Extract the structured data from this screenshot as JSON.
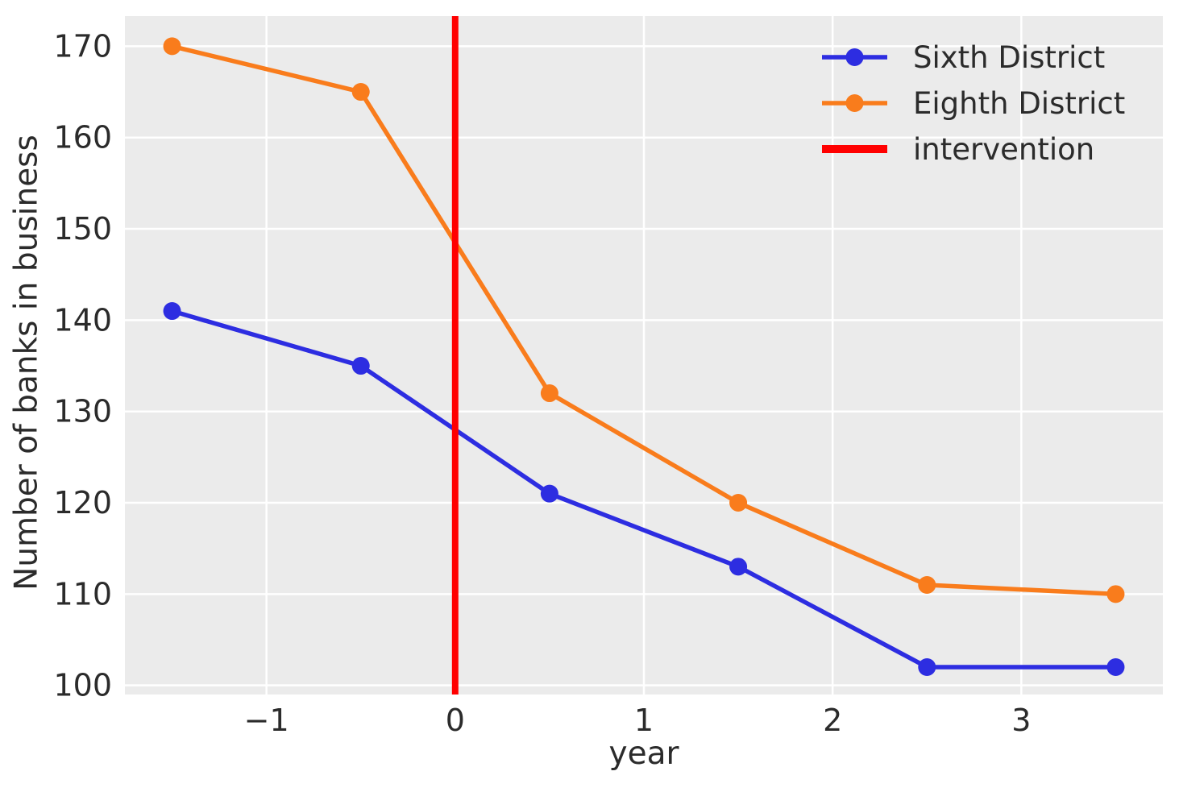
{
  "figure": {
    "background": "#ffffff",
    "plot_background": "#ebebeb",
    "grid_color": "#ffffff",
    "text_color": "#2b2b2b"
  },
  "chart_data": {
    "type": "line",
    "title": "",
    "xlabel": "year",
    "ylabel": "Number of banks in business",
    "x": [
      -1.5,
      -0.5,
      0.5,
      1.5,
      2.5,
      3.5
    ],
    "series": [
      {
        "name": "Sixth District",
        "color": "#2d2de1",
        "values": [
          141,
          135,
          121,
          113,
          102,
          102
        ]
      },
      {
        "name": "Eighth District",
        "color": "#f97c1c",
        "values": [
          170,
          165,
          132,
          120,
          111,
          110
        ]
      }
    ],
    "intervention": {
      "label": "intervention",
      "x": 0,
      "color": "#ff0000"
    },
    "xticks": [
      -1,
      0,
      1,
      2,
      3
    ],
    "xtick_labels": [
      "−1",
      "0",
      "1",
      "2",
      "3"
    ],
    "yticks": [
      100,
      110,
      120,
      130,
      140,
      150,
      160,
      170
    ],
    "ytick_labels": [
      "100",
      "110",
      "120",
      "130",
      "140",
      "150",
      "160",
      "170"
    ],
    "xlim": [
      -1.75,
      3.75
    ],
    "ylim": [
      99,
      173.3
    ],
    "grid": true,
    "legend_position": "upper right"
  }
}
